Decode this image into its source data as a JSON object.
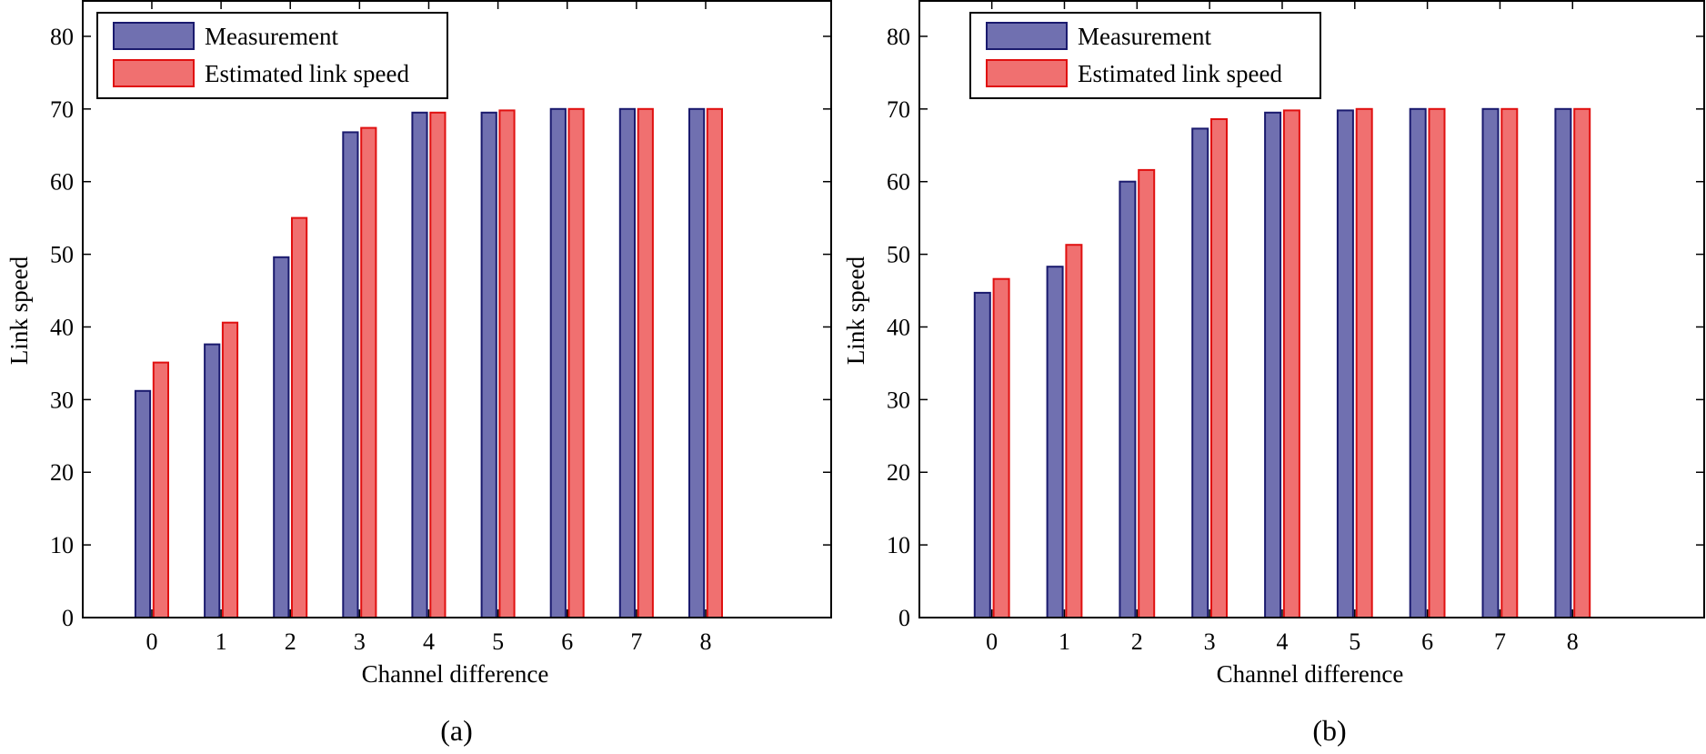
{
  "chart_data": [
    {
      "type": "bar",
      "caption": "(a)",
      "xlabel": "Channel difference",
      "ylabel": "Link speed",
      "ylim": [
        0,
        85
      ],
      "yticks": [
        0,
        10,
        20,
        30,
        40,
        50,
        60,
        70,
        80
      ],
      "categories": [
        "0",
        "1",
        "2",
        "3",
        "4",
        "5",
        "6",
        "7",
        "8"
      ],
      "legend_position": "top-left",
      "series": [
        {
          "name": "Measurement",
          "color": "#7070b0",
          "edge": "#1a1a6e",
          "values": [
            31.2,
            37.6,
            49.6,
            66.8,
            69.5,
            69.5,
            70,
            70,
            70
          ]
        },
        {
          "name": "Estimated link speed",
          "color": "#f07070",
          "edge": "#e01010",
          "values": [
            35.1,
            40.6,
            55.0,
            67.4,
            69.5,
            69.8,
            70,
            70,
            70
          ]
        }
      ]
    },
    {
      "type": "bar",
      "caption": "(b)",
      "xlabel": "Channel difference",
      "ylabel": "Link speed",
      "ylim": [
        0,
        85
      ],
      "yticks": [
        0,
        10,
        20,
        30,
        40,
        50,
        60,
        70,
        80
      ],
      "categories": [
        "0",
        "1",
        "2",
        "3",
        "4",
        "5",
        "6",
        "7",
        "8"
      ],
      "legend_position": "top-left",
      "series": [
        {
          "name": "Measurement",
          "color": "#7070b0",
          "edge": "#1a1a6e",
          "values": [
            44.7,
            48.3,
            60.0,
            67.3,
            69.5,
            69.8,
            70,
            70,
            70
          ]
        },
        {
          "name": "Estimated link speed",
          "color": "#f07070",
          "edge": "#e01010",
          "values": [
            46.6,
            51.3,
            61.6,
            68.6,
            69.8,
            70,
            70,
            70,
            70
          ]
        }
      ]
    }
  ]
}
